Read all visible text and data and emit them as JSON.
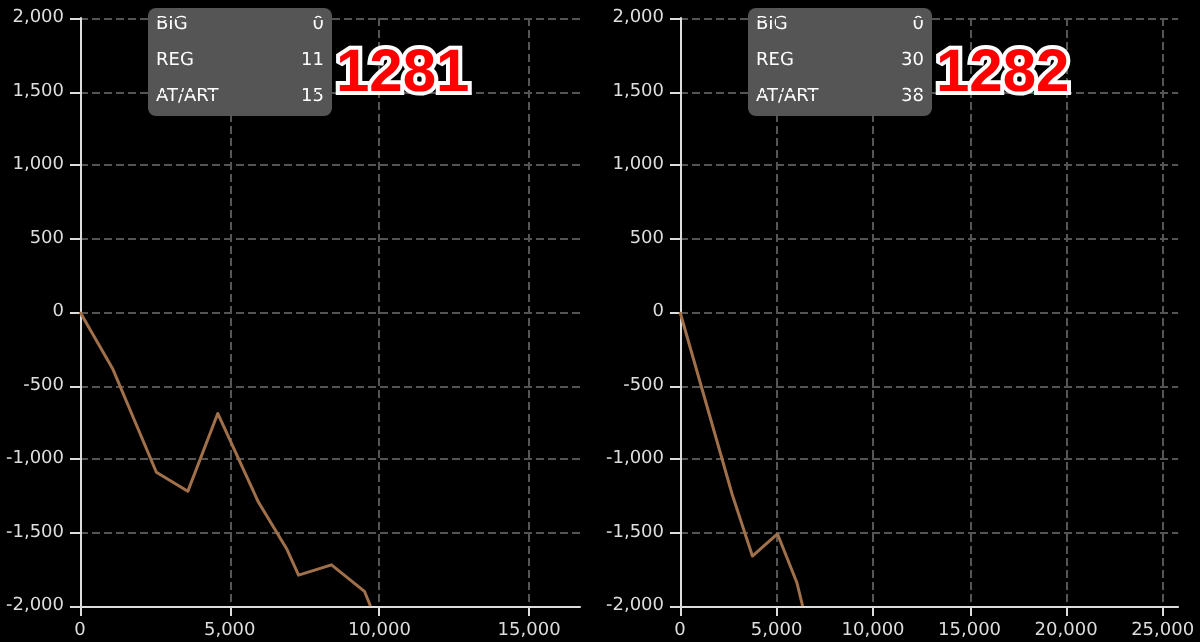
{
  "chart_data": [
    {
      "type": "line",
      "title": "1281",
      "annotations": [
        "BIG",
        "0",
        "REG",
        "11",
        "AT/ART",
        "15"
      ],
      "color": "#a0704a",
      "line_style": "solid",
      "marker": "none",
      "grid": true,
      "x": [
        0,
        1100,
        2550,
        3600,
        4600,
        5950,
        6900,
        7300,
        8400,
        9500,
        9700
      ],
      "values": [
        0,
        -390,
        -1090,
        -1220,
        -690,
        -1290,
        -1610,
        -1790,
        -1720,
        -1900,
        -2000
      ],
      "xlim": [
        0,
        16700
      ],
      "xticks": [
        0,
        {
          "value": 5000,
          "label": "5,000"
        },
        {
          "value": 10000,
          "label": "10,000"
        },
        {
          "value": 15000,
          "label": "15,000"
        }
      ],
      "ylim": [
        -2000,
        2000
      ],
      "yticks": [
        {
          "value": -2000,
          "label": "-2,000"
        },
        {
          "value": -1500,
          "label": "-1,500"
        },
        {
          "value": -1000,
          "label": "-1,000"
        },
        -500,
        0,
        500,
        {
          "value": 1000,
          "label": "1,000"
        },
        {
          "value": 1500,
          "label": "1,500"
        },
        {
          "value": 2000,
          "label": "2,000"
        }
      ]
    },
    {
      "type": "line",
      "title": "1282",
      "annotations": [
        "BIG",
        "0",
        "REG",
        "30",
        "AT/ART",
        "38"
      ],
      "color": "#a0704a",
      "line_style": "solid",
      "marker": "none",
      "grid": true,
      "x": [
        0,
        2700,
        3750,
        5050,
        6050,
        6350
      ],
      "values": [
        0,
        -1240,
        -1660,
        -1510,
        -1840,
        -2000
      ],
      "xlim": [
        0,
        25800
      ],
      "xticks": [
        0,
        {
          "value": 5000,
          "label": "5,000"
        },
        {
          "value": 10000,
          "label": "10,000"
        },
        {
          "value": 15000,
          "label": "15,000"
        },
        {
          "value": 20000,
          "label": "20,000"
        },
        {
          "value": 25000,
          "label": "25,000"
        }
      ],
      "ylim": [
        -2000,
        2000
      ],
      "yticks": [
        {
          "value": -2000,
          "label": "-2,000"
        },
        {
          "value": -1500,
          "label": "-1,500"
        },
        {
          "value": -1000,
          "label": "-1,000"
        },
        -500,
        0,
        500,
        {
          "value": 1000,
          "label": "1,000"
        },
        {
          "value": 1500,
          "label": "1,500"
        },
        {
          "value": 2000,
          "label": "2,000"
        }
      ]
    }
  ]
}
